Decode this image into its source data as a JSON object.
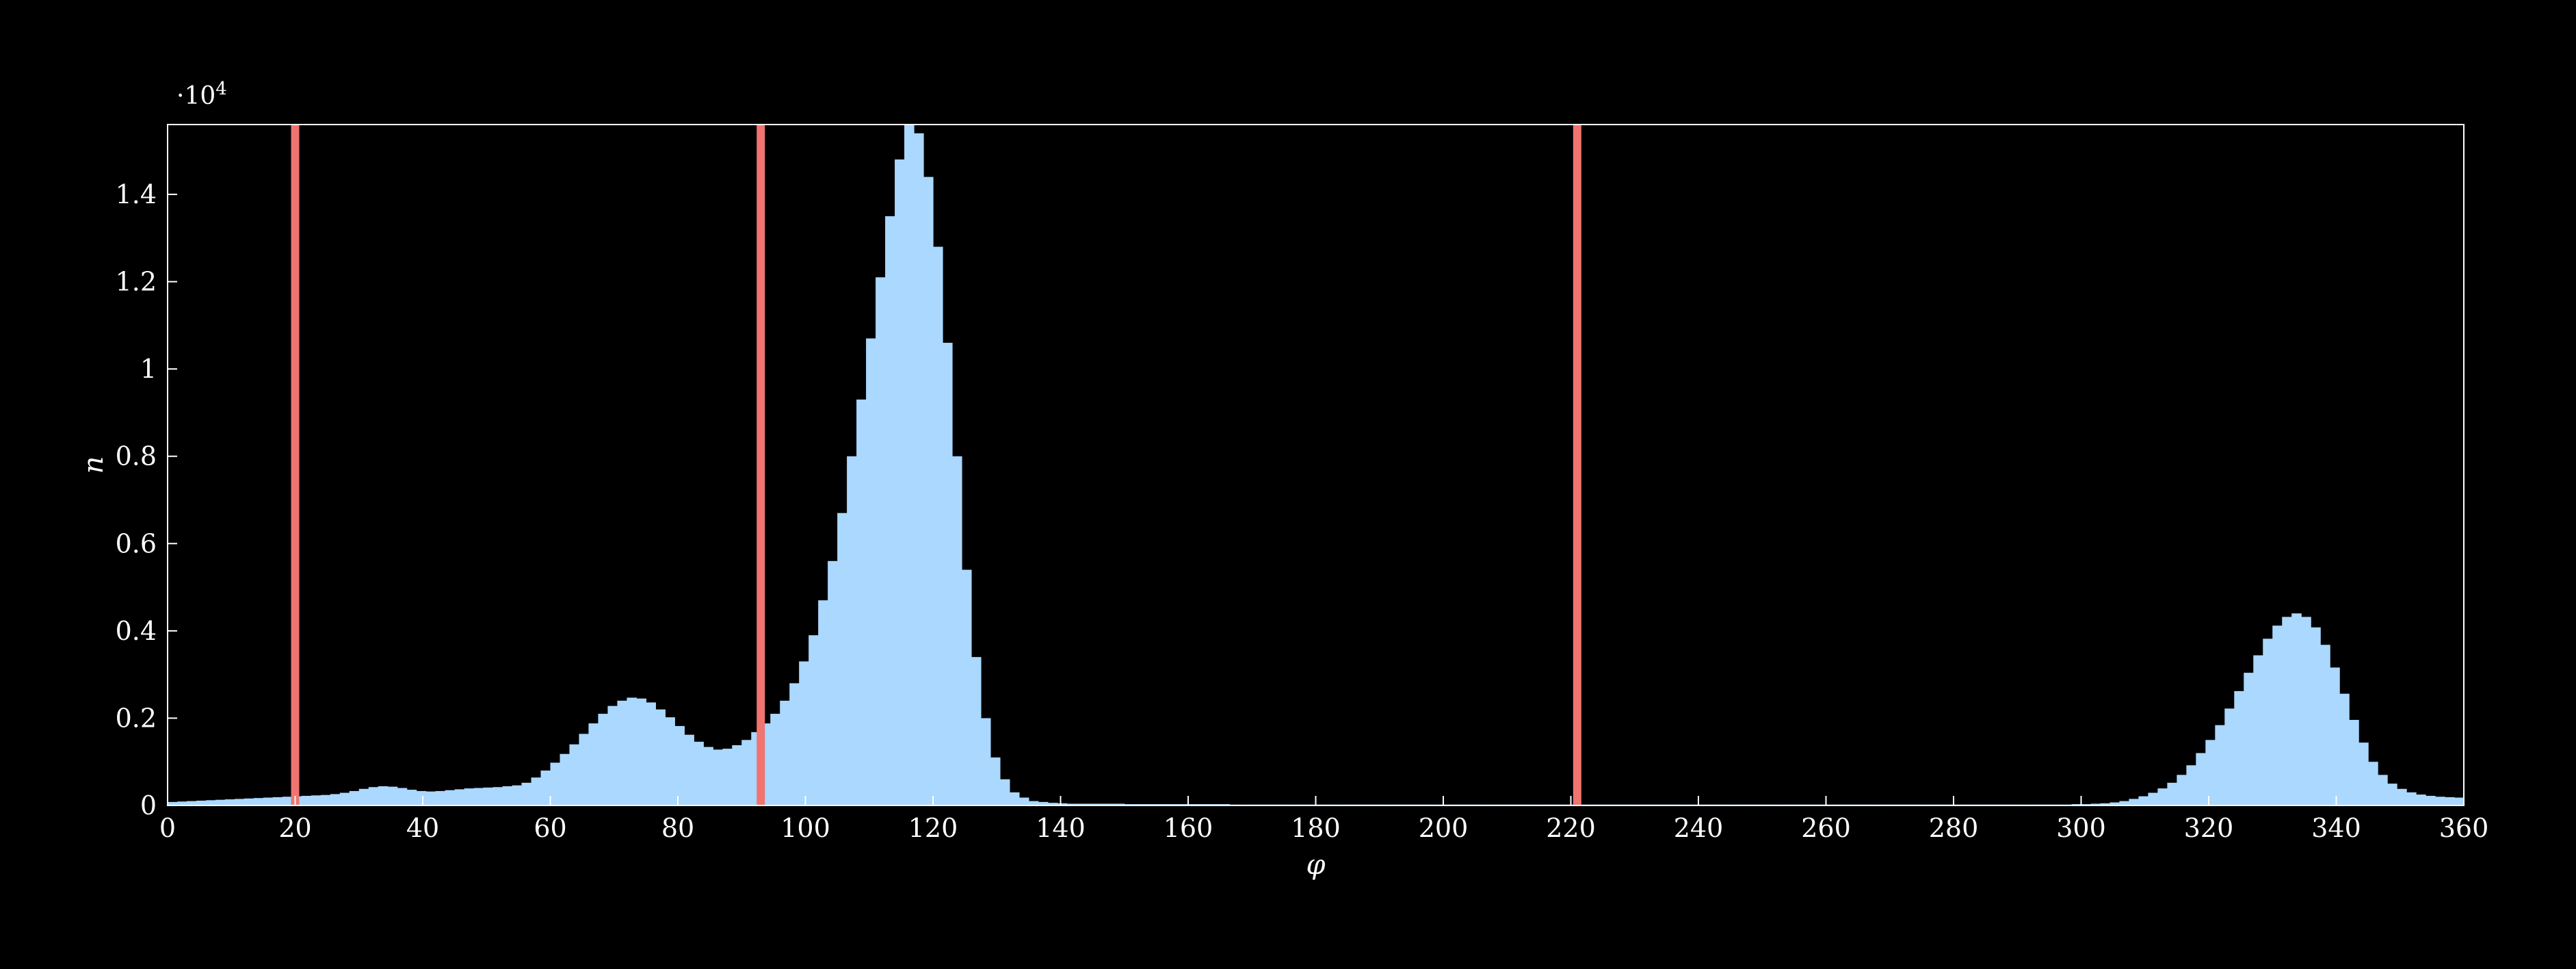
{
  "chart_data": {
    "type": "bar",
    "title": "",
    "xlabel": "φ",
    "ylabel": "n",
    "y_scale_label": "·10",
    "y_scale_exponent": "4",
    "xlim": [
      0,
      360
    ],
    "ylim": [
      0,
      15600
    ],
    "x_ticks": [
      0,
      20,
      40,
      60,
      80,
      100,
      120,
      140,
      160,
      180,
      200,
      220,
      240,
      260,
      280,
      300,
      320,
      340,
      360
    ],
    "y_ticks": [
      {
        "value": 0,
        "label": "0"
      },
      {
        "value": 2000,
        "label": "0.2"
      },
      {
        "value": 4000,
        "label": "0.4"
      },
      {
        "value": 6000,
        "label": "0.6"
      },
      {
        "value": 8000,
        "label": "0.8"
      },
      {
        "value": 10000,
        "label": "1"
      },
      {
        "value": 12000,
        "label": "1.2"
      },
      {
        "value": 14000,
        "label": "1.4"
      }
    ],
    "bin_width": 1.5,
    "bins": {
      "start": 0,
      "values": [
        80,
        90,
        100,
        110,
        120,
        130,
        140,
        150,
        160,
        170,
        180,
        190,
        200,
        210,
        220,
        230,
        240,
        260,
        290,
        330,
        380,
        420,
        440,
        430,
        400,
        360,
        330,
        320,
        330,
        350,
        370,
        390,
        400,
        410,
        420,
        440,
        460,
        520,
        640,
        800,
        980,
        1180,
        1400,
        1640,
        1880,
        2100,
        2280,
        2400,
        2470,
        2450,
        2360,
        2200,
        2020,
        1820,
        1620,
        1460,
        1340,
        1280,
        1300,
        1380,
        1500,
        1680,
        1880,
        2100,
        2400,
        2800,
        3300,
        3900,
        4700,
        5600,
        6700,
        8000,
        9300,
        10700,
        12100,
        13500,
        14800,
        15600,
        15400,
        14400,
        12800,
        10600,
        8000,
        5400,
        3400,
        2000,
        1100,
        600,
        300,
        180,
        100,
        80,
        60,
        50,
        40,
        40,
        40,
        40,
        40,
        40,
        30,
        30,
        30,
        30,
        30,
        30,
        30,
        30,
        30,
        30,
        30,
        20,
        20,
        20,
        20,
        20,
        20,
        20,
        20,
        20,
        20,
        20,
        20,
        20,
        20,
        20,
        20,
        20,
        20,
        20,
        20,
        20,
        20,
        20,
        20,
        20,
        20,
        20,
        20,
        20,
        20,
        20,
        20,
        20,
        20,
        20,
        20,
        20,
        20,
        20,
        20,
        20,
        20,
        20,
        20,
        20,
        20,
        20,
        20,
        20,
        20,
        20,
        20,
        20,
        20,
        20,
        20,
        20,
        20,
        20,
        20,
        20,
        20,
        20,
        20,
        20,
        20,
        20,
        20,
        20,
        20,
        20,
        20,
        20,
        20,
        20,
        20,
        20,
        20,
        20,
        20,
        20,
        20,
        20,
        20,
        20,
        20,
        20,
        20,
        30,
        30,
        40,
        50,
        70,
        100,
        150,
        210,
        290,
        390,
        520,
        700,
        920,
        1200,
        1500,
        1840,
        2220,
        2620,
        3040,
        3440,
        3820,
        4120,
        4320,
        4400,
        4320,
        4080,
        3680,
        3160,
        2560,
        1960,
        1440,
        1000,
        700,
        500,
        380,
        300,
        250,
        220,
        200,
        190,
        180,
        180,
        180,
        190,
        200,
        220
      ],
      "color": "#aad8ff"
    },
    "vertical_lines": [
      {
        "x": 20,
        "color": "#f07470"
      },
      {
        "x": 93,
        "color": "#f07470"
      },
      {
        "x": 221,
        "color": "#f07470"
      }
    ],
    "axis_color": "#ffffff",
    "background": "#000000",
    "grid": false
  }
}
